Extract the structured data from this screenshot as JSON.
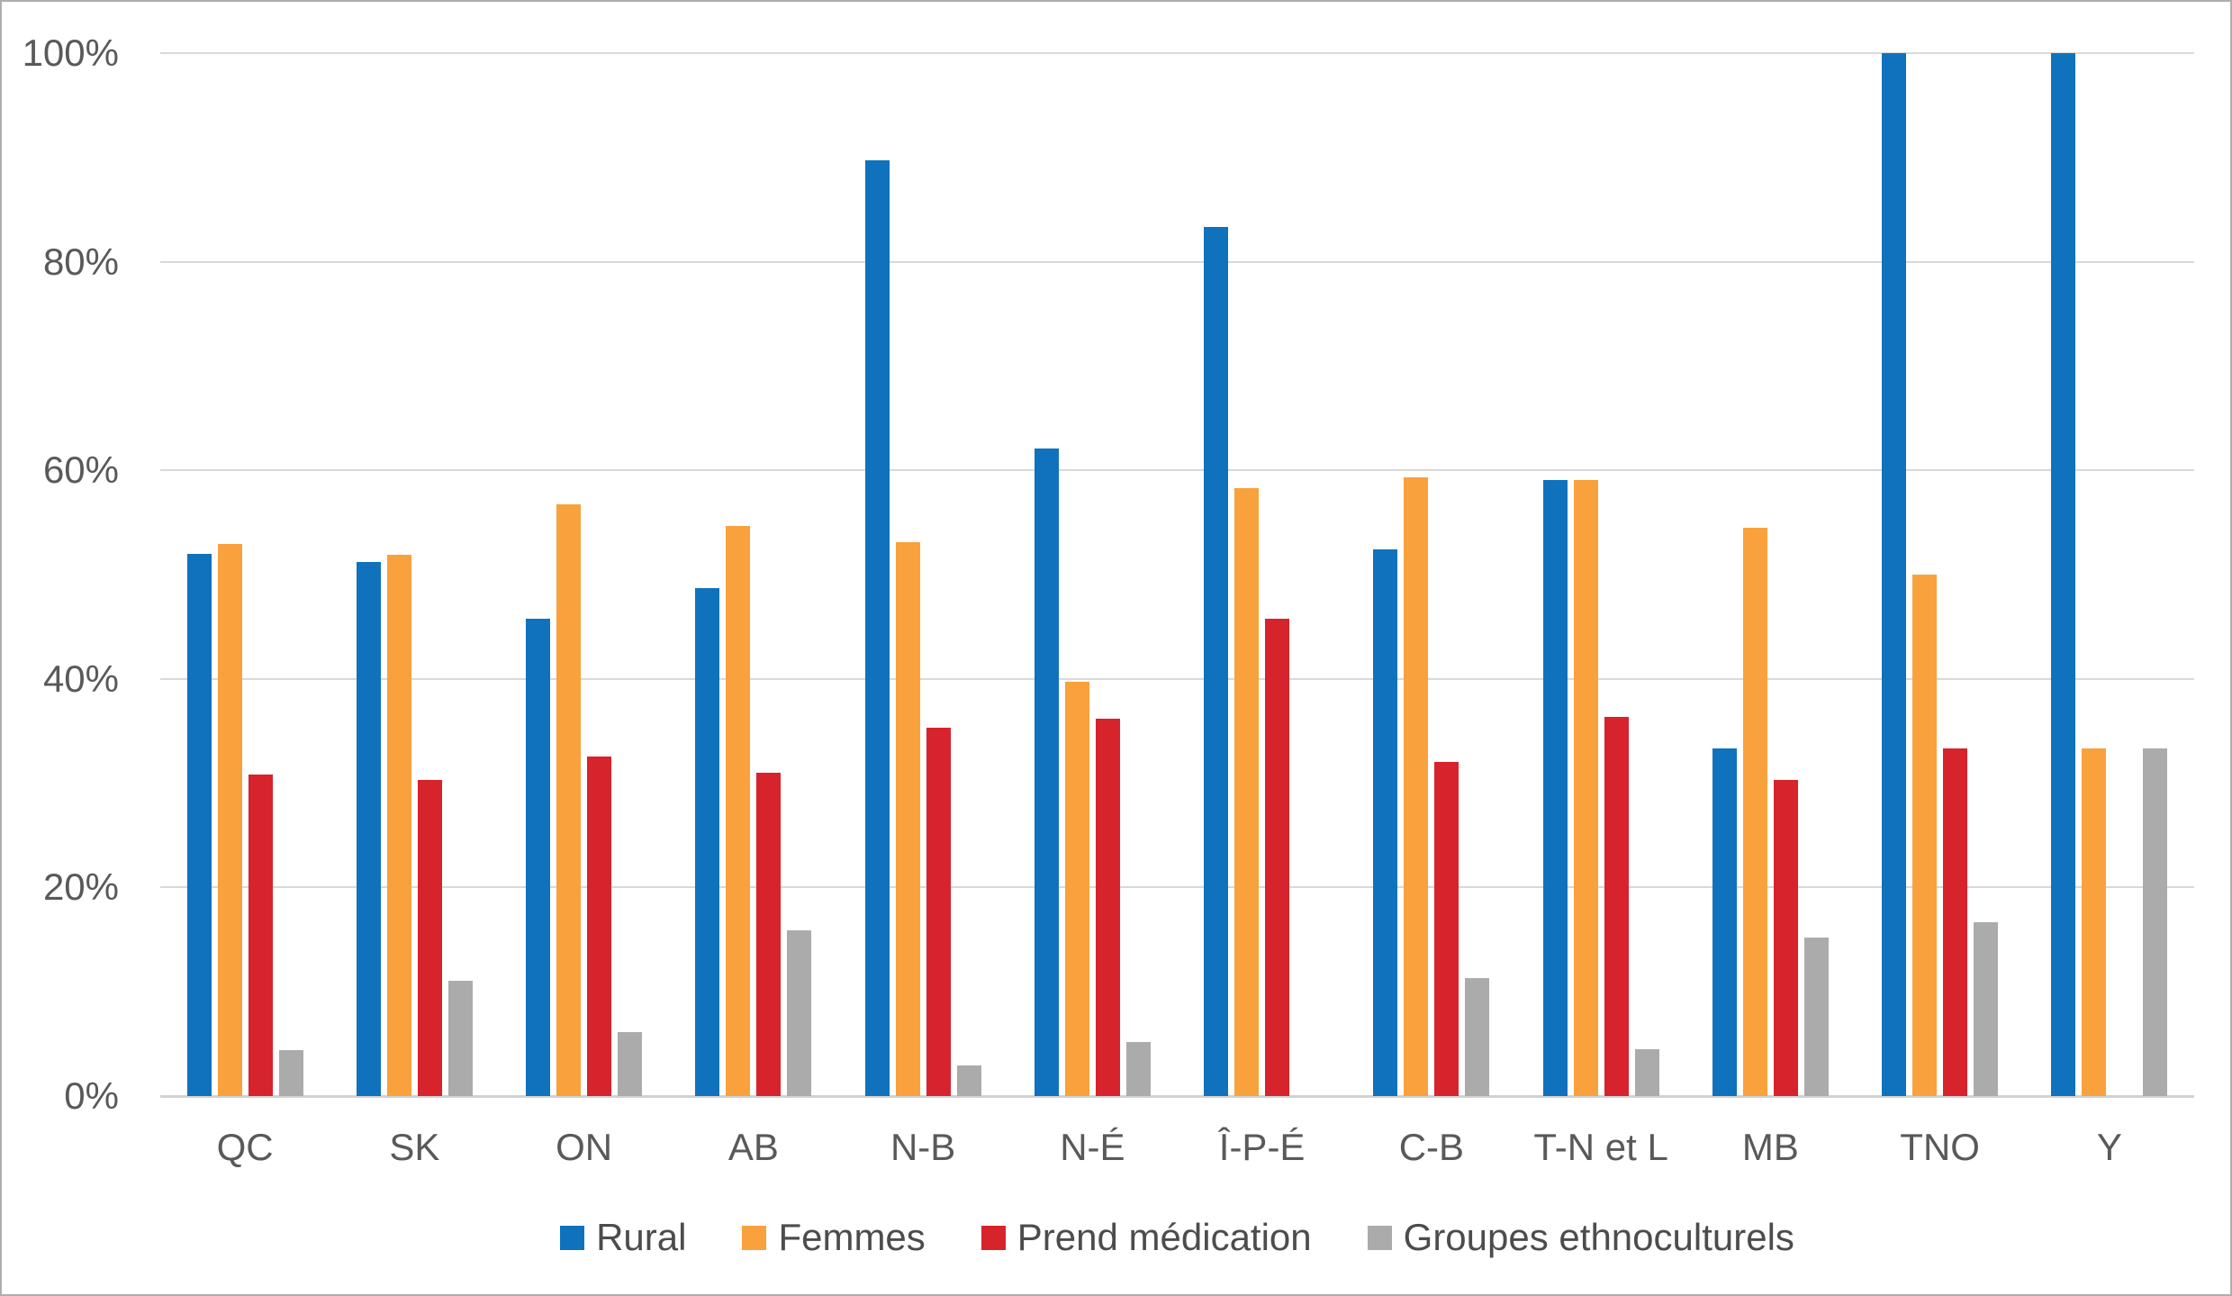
{
  "chart": {
    "background": "#ffffff",
    "frame_border_color": "#aeaeae",
    "gridline_color": "#d9d9d9",
    "axis_line_color": "#d2d2d2",
    "axis_text_color": "#595959",
    "legend_text_color": "#4c4c4c",
    "y_axis": {
      "ticks": [
        "100%",
        "80%",
        "60%",
        "40%",
        "20%",
        "0%"
      ]
    }
  },
  "chart_data": {
    "type": "bar",
    "title": "",
    "xlabel": "",
    "ylabel": "",
    "ylim": [
      0,
      100
    ],
    "ytick_step": 20,
    "ytick_format": "percent",
    "grid": true,
    "legend_position": "bottom",
    "categories": [
      "QC",
      "SK",
      "ON",
      "AB",
      "N-B",
      "N-É",
      "Î-P-É",
      "C-B",
      "T-N et L",
      "MB",
      "TNO",
      "Y"
    ],
    "series": [
      {
        "name": "Rural",
        "color": "#1072bc",
        "values": [
          52.0,
          51.2,
          45.8,
          48.7,
          89.7,
          62.1,
          83.3,
          52.4,
          59.1,
          33.3,
          100.0,
          100.0
        ]
      },
      {
        "name": "Femmes",
        "color": "#f9a13c",
        "values": [
          52.9,
          51.9,
          56.7,
          54.7,
          53.1,
          39.7,
          58.3,
          59.3,
          59.1,
          54.5,
          50.0,
          33.3
        ]
      },
      {
        "name": "Prend médication",
        "color": "#d7232b",
        "values": [
          30.8,
          30.3,
          32.6,
          31.0,
          35.3,
          36.2,
          45.8,
          32.0,
          36.4,
          30.3,
          33.3,
          0.0
        ]
      },
      {
        "name": "Groupes ethnoculturels",
        "color": "#ababab",
        "values": [
          4.4,
          11.1,
          6.1,
          15.9,
          2.9,
          5.2,
          0.0,
          11.3,
          4.5,
          15.2,
          16.7,
          33.3
        ]
      }
    ]
  }
}
